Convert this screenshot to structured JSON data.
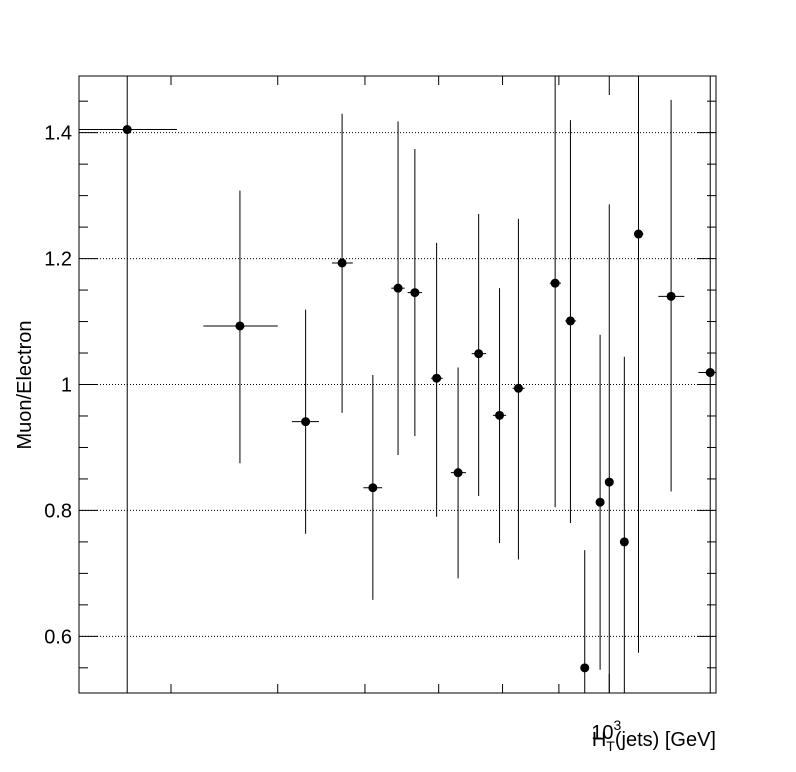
{
  "chart_data": {
    "type": "scatter",
    "title": "",
    "xlabel": "H_T(jets) [GeV]",
    "xlabel_main": "H",
    "xlabel_sub": "T",
    "xlabel_rest": "(jets) [GeV]",
    "ylabel": "Muon/Electron",
    "xscale": "log",
    "xlim": [
      330,
      1250
    ],
    "ylim": [
      0.51,
      1.49
    ],
    "x_tick_labels": [
      {
        "value": 1000,
        "base": "10",
        "exp": "3"
      }
    ],
    "y_tick_labels": [
      {
        "value": 0.6,
        "label": "0.6"
      },
      {
        "value": 0.8,
        "label": "0.8"
      },
      {
        "value": 1.0,
        "label": "1"
      },
      {
        "value": 1.2,
        "label": "1.2"
      },
      {
        "value": 1.4,
        "label": "1.4"
      }
    ],
    "grid": {
      "x": false,
      "y": true
    },
    "points": [
      {
        "x": 365,
        "xlo": 330,
        "xhi": 405,
        "y": 1.405,
        "ylo": 0.51,
        "yhi": 1.49
      },
      {
        "x": 462,
        "xlo": 428,
        "xhi": 500,
        "y": 1.093,
        "ylo": 0.875,
        "yhi": 1.308
      },
      {
        "x": 530,
        "xlo": 515,
        "xhi": 545,
        "y": 0.941,
        "ylo": 0.763,
        "yhi": 1.119
      },
      {
        "x": 572,
        "xlo": 560,
        "xhi": 585,
        "y": 1.193,
        "ylo": 0.955,
        "yhi": 1.43
      },
      {
        "x": 610,
        "xlo": 598,
        "xhi": 622,
        "y": 0.836,
        "ylo": 0.658,
        "yhi": 1.015
      },
      {
        "x": 643,
        "xlo": 634,
        "xhi": 652,
        "y": 1.153,
        "ylo": 0.888,
        "yhi": 1.418
      },
      {
        "x": 666,
        "xlo": 656,
        "xhi": 676,
        "y": 1.146,
        "ylo": 0.918,
        "yhi": 1.374
      },
      {
        "x": 697,
        "xlo": 689,
        "xhi": 706,
        "y": 1.01,
        "ylo": 0.79,
        "yhi": 1.225
      },
      {
        "x": 729,
        "xlo": 718,
        "xhi": 741,
        "y": 0.86,
        "ylo": 0.692,
        "yhi": 1.027
      },
      {
        "x": 761,
        "xlo": 750,
        "xhi": 773,
        "y": 1.049,
        "ylo": 0.823,
        "yhi": 1.271
      },
      {
        "x": 795,
        "xlo": 784,
        "xhi": 806,
        "y": 0.951,
        "ylo": 0.748,
        "yhi": 1.153
      },
      {
        "x": 827,
        "xlo": 817,
        "xhi": 838,
        "y": 0.994,
        "ylo": 0.722,
        "yhi": 1.263
      },
      {
        "x": 893,
        "xlo": 883,
        "xhi": 904,
        "y": 1.161,
        "ylo": 0.805,
        "yhi": 1.49
      },
      {
        "x": 922,
        "xlo": 912,
        "xhi": 933,
        "y": 1.101,
        "ylo": 0.78,
        "yhi": 1.42
      },
      {
        "x": 950,
        "xlo": 942,
        "xhi": 958,
        "y": 0.55,
        "ylo": 0.51,
        "yhi": 0.737
      },
      {
        "x": 981,
        "xlo": 972,
        "xhi": 990,
        "y": 0.813,
        "ylo": 0.547,
        "yhi": 1.079
      },
      {
        "x": 1000,
        "xlo": 992,
        "xhi": 1009,
        "y": 0.845,
        "ylo": 0.51,
        "yhi": 1.286
      },
      {
        "x": 1032,
        "xlo": 1023,
        "xhi": 1041,
        "y": 0.75,
        "ylo": 0.51,
        "yhi": 1.044
      },
      {
        "x": 1063,
        "xlo": 1053,
        "xhi": 1074,
        "y": 1.239,
        "ylo": 0.574,
        "yhi": 1.49
      },
      {
        "x": 1138,
        "xlo": 1108,
        "xhi": 1170,
        "y": 1.14,
        "ylo": 0.83,
        "yhi": 1.452
      },
      {
        "x": 1235,
        "xlo": 1205,
        "xhi": 1250,
        "y": 1.019,
        "ylo": 0.51,
        "yhi": 1.49
      }
    ]
  }
}
